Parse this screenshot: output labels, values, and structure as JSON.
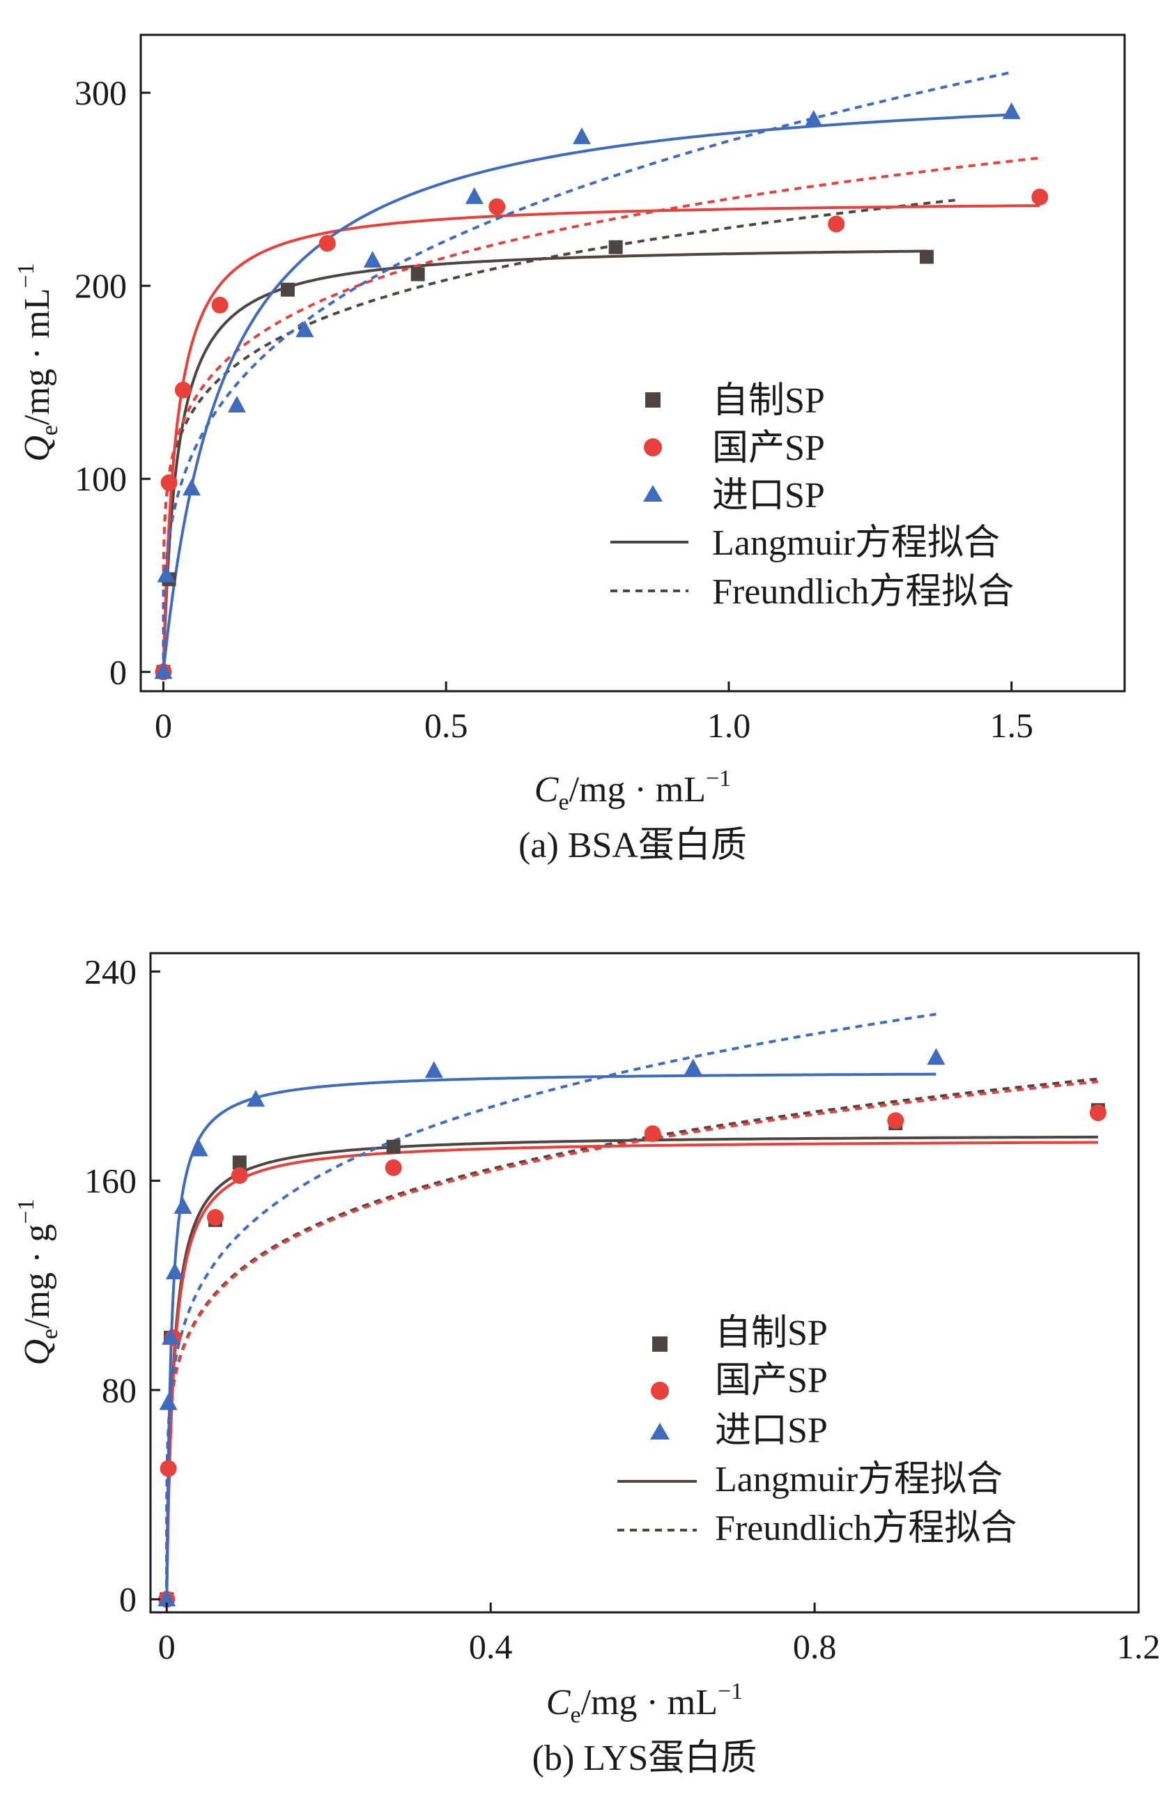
{
  "chart_data": [
    {
      "type": "scatter",
      "panel": "a",
      "caption": "(a) BSA蛋白质",
      "xlabel": {
        "symbol": "C",
        "sub": "e",
        "unit": "/mg · mL",
        "sup": "−1"
      },
      "ylabel": {
        "symbol": "Q",
        "sub": "e",
        "unit": "/mg · mL",
        "sup": "−1"
      },
      "xlim": [
        -0.04,
        1.7
      ],
      "ylim": [
        -10,
        330
      ],
      "xticks": [
        0,
        0.5,
        1.0,
        1.5
      ],
      "xtick_labels": [
        "0",
        "0.5",
        "1.0",
        "1.5"
      ],
      "yticks": [
        0,
        100,
        200,
        300
      ],
      "ytick_labels": [
        "0",
        "100",
        "200",
        "300"
      ],
      "legend": {
        "position": "right-middle",
        "entries": [
          "自制SP",
          "国产SP",
          "进口SP",
          "Langmuir方程拟合",
          "Freundlich方程拟合"
        ]
      },
      "series": [
        {
          "name": "自制SP",
          "marker": "square",
          "color": "#4d4542",
          "x": [
            0,
            0.01,
            0.22,
            0.45,
            0.8,
            1.35
          ],
          "y": [
            0,
            48,
            198,
            206,
            220,
            215
          ],
          "langmuir": {
            "qmax": 222,
            "K": 40,
            "xmax": 1.35
          },
          "freundlich": {
            "k": 230,
            "n": 0.18,
            "xmax": 1.4
          }
        },
        {
          "name": "国产SP",
          "marker": "circle",
          "color": "#e8413c",
          "x": [
            0,
            0.01,
            0.035,
            0.1,
            0.29,
            0.59,
            1.19,
            1.55
          ],
          "y": [
            0,
            98,
            146,
            190,
            222,
            241,
            232,
            246
          ],
          "langmuir": {
            "qmax": 245,
            "K": 45,
            "xmax": 1.55
          },
          "freundlich": {
            "k": 245,
            "n": 0.19,
            "xmax": 1.55
          }
        },
        {
          "name": "进口SP",
          "marker": "triangle",
          "color": "#3f6bbf",
          "x": [
            0,
            0.005,
            0.05,
            0.13,
            0.25,
            0.37,
            0.55,
            0.74,
            1.15,
            1.5
          ],
          "y": [
            0,
            50,
            95,
            138,
            177,
            213,
            246,
            277,
            286,
            290
          ],
          "langmuir": {
            "qmax": 310,
            "K": 9,
            "xmax": 1.5
          },
          "freundlich": {
            "k": 275,
            "n": 0.3,
            "xmax": 1.5
          }
        }
      ]
    },
    {
      "type": "scatter",
      "panel": "b",
      "caption": "(b) LYS蛋白质",
      "xlabel": {
        "symbol": "C",
        "sub": "e",
        "unit": "/mg · mL",
        "sup": "−1"
      },
      "ylabel": {
        "symbol": "Q",
        "sub": "e",
        "unit": "/mg · g",
        "sup": "−1"
      },
      "xlim": [
        -0.02,
        1.2
      ],
      "ylim": [
        -5,
        247
      ],
      "xticks": [
        0,
        0.4,
        0.8,
        1.2
      ],
      "xtick_labels": [
        "0",
        "0.4",
        "0.8",
        "1.2"
      ],
      "yticks": [
        0,
        80,
        160,
        240
      ],
      "ytick_labels": [
        "0",
        "80",
        "160",
        "240"
      ],
      "legend": {
        "position": "right-middle",
        "entries": [
          "自制SP",
          "国产SP",
          "进口SP",
          "Langmuir方程拟合",
          "Freundlich方程拟合"
        ]
      },
      "series": [
        {
          "name": "自制SP",
          "marker": "square",
          "color": "#4d4542",
          "x": [
            0,
            0.005,
            0.06,
            0.09,
            0.28,
            0.9,
            1.15
          ],
          "y": [
            0,
            100,
            145,
            167,
            173,
            182,
            187
          ],
          "langmuir": {
            "qmax": 178,
            "K": 120,
            "xmax": 1.15
          },
          "freundlich": {
            "k": 194,
            "n": 0.18,
            "xmax": 1.15
          }
        },
        {
          "name": "国产SP",
          "marker": "circle",
          "color": "#e8413c",
          "x": [
            0,
            0.002,
            0.008,
            0.06,
            0.09,
            0.28,
            0.6,
            0.9,
            1.15
          ],
          "y": [
            0,
            50,
            100,
            146,
            162,
            165,
            178,
            183,
            186
          ],
          "langmuir": {
            "qmax": 176,
            "K": 115,
            "xmax": 1.15
          },
          "freundlich": {
            "k": 193,
            "n": 0.18,
            "xmax": 1.15
          }
        },
        {
          "name": "进口SP",
          "marker": "triangle",
          "color": "#3f6bbf",
          "x": [
            0,
            0.002,
            0.005,
            0.01,
            0.02,
            0.04,
            0.11,
            0.33,
            0.65,
            0.95
          ],
          "y": [
            0,
            75,
            100,
            125,
            150,
            172,
            191,
            202,
            203,
            207
          ],
          "langmuir": {
            "qmax": 202,
            "K": 170,
            "xmax": 0.95
          },
          "freundlich": {
            "k": 226,
            "n": 0.2,
            "xmax": 0.95
          }
        }
      ]
    }
  ]
}
